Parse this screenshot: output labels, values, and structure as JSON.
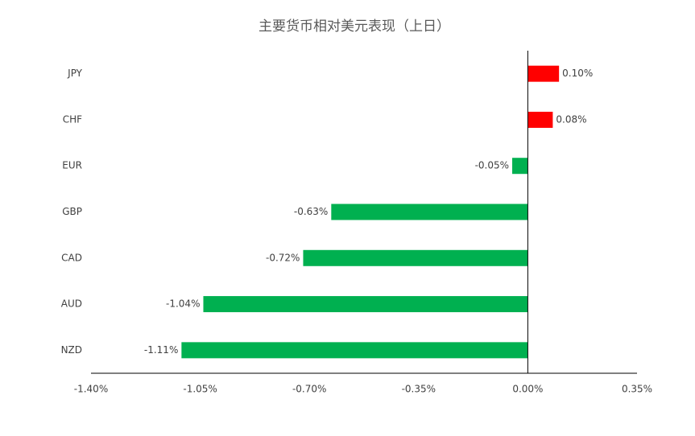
{
  "chart_data": {
    "type": "hbar",
    "title": "主要货币相对美元表现（上日）",
    "categories": [
      "JPY",
      "CHF",
      "EUR",
      "GBP",
      "CAD",
      "AUD",
      "NZD"
    ],
    "values": [
      0.1,
      0.08,
      -0.05,
      -0.63,
      -0.72,
      -1.04,
      -1.11
    ],
    "value_labels": [
      "0.10%",
      "0.08%",
      "-0.05%",
      "-0.63%",
      "-0.72%",
      "-1.04%",
      "-1.11%"
    ],
    "colors": [
      "#ff0000",
      "#ff0000",
      "#00b050",
      "#00b050",
      "#00b050",
      "#00b050",
      "#00b050"
    ],
    "xlim": [
      -1.4,
      0.35
    ],
    "xticks": [
      {
        "value": -1.4,
        "label": "-1.40%"
      },
      {
        "value": -1.05,
        "label": "-1.05%"
      },
      {
        "value": -0.7,
        "label": "-0.70%"
      },
      {
        "value": -0.35,
        "label": "-0.35%"
      },
      {
        "value": 0,
        "label": "0.00%"
      },
      {
        "value": 0.35,
        "label": "0.35%"
      }
    ],
    "grid": false
  }
}
